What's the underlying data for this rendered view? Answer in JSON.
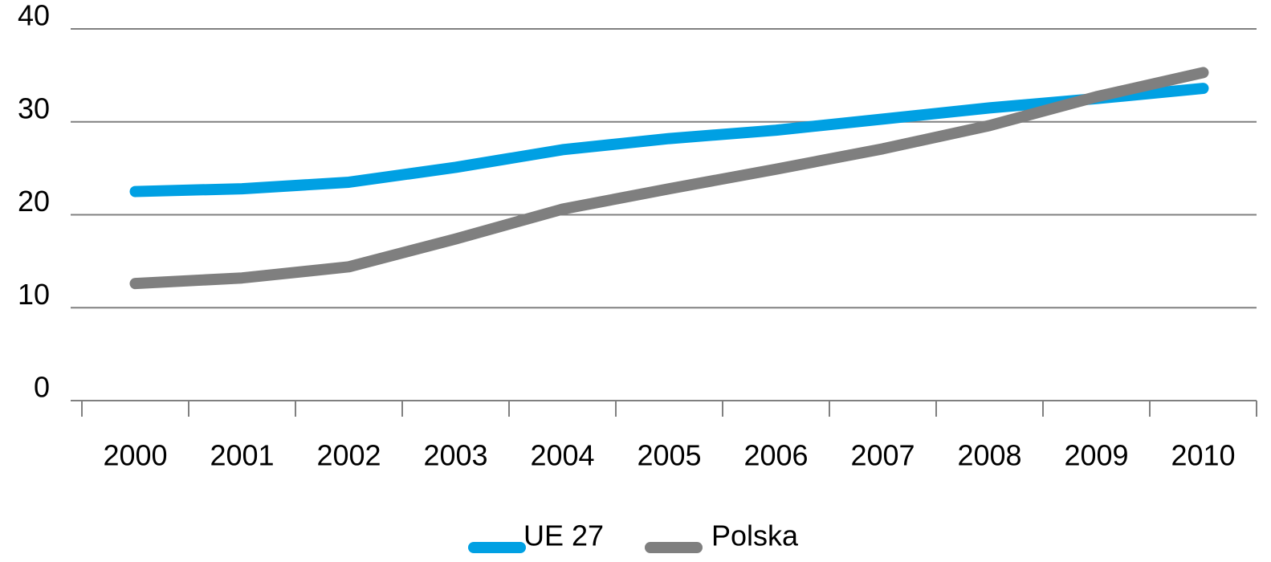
{
  "chart_data": {
    "type": "line",
    "categories": [
      "2000",
      "2001",
      "2002",
      "2003",
      "2004",
      "2005",
      "2006",
      "2007",
      "2008",
      "2009",
      "2010"
    ],
    "series": [
      {
        "name": "UE 27",
        "color": "#00a0e3",
        "values": [
          22.5,
          22.8,
          23.5,
          25.1,
          27.0,
          28.2,
          29.1,
          30.3,
          31.5,
          32.5,
          33.6
        ]
      },
      {
        "name": "Polska",
        "color": "#7f7f7f",
        "values": [
          12.6,
          13.2,
          14.4,
          17.4,
          20.6,
          22.8,
          24.9,
          27.1,
          29.6,
          32.7,
          35.3
        ]
      }
    ],
    "ylim": [
      0,
      40
    ],
    "yticks": [
      0,
      10,
      20,
      30,
      40
    ],
    "grid": true,
    "legend": "bottom"
  }
}
